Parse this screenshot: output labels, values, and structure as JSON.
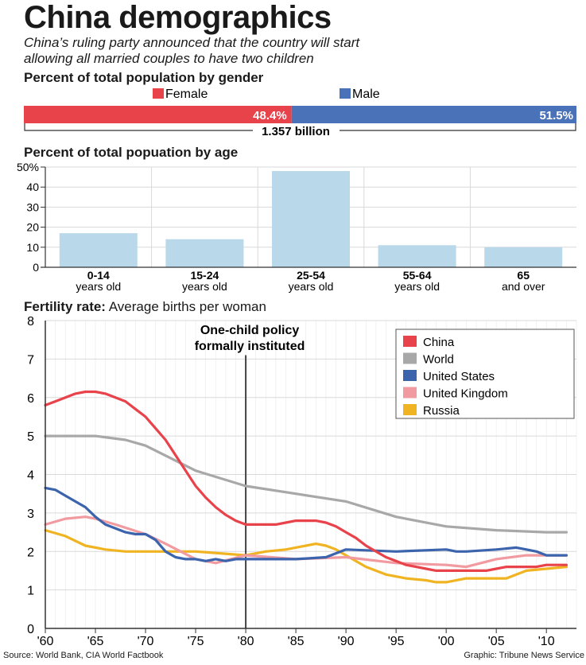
{
  "header": {
    "title": "China demographics",
    "subtitle_line1": "China’s ruling party announced that the country will start",
    "subtitle_line2": "allowing all married couples to have two children"
  },
  "colors": {
    "female": "#e8434b",
    "male": "#4a72b8",
    "age_bar": "#b9d8ea",
    "china": "#e8434b",
    "world": "#a8a8a8",
    "united_states": "#3c64ad",
    "united_kingdom": "#f19aa0",
    "russia": "#f0b422",
    "policy_line": "#444444",
    "grid": "#d9d9d9"
  },
  "gender": {
    "title": "Percent of total population by gender",
    "female_label": "Female",
    "male_label": "Male",
    "female_value": "48.4%",
    "male_value": "51.5%",
    "female_share": 48.4,
    "male_share": 51.5,
    "total": "1.357 billion"
  },
  "age": {
    "title": "Percent of total popuation by age"
  },
  "fertility": {
    "title_bold": "Fertility rate:",
    "title_rest": " Average births per woman",
    "annotation_line1": "One-child policy",
    "annotation_line2": "formally instituted",
    "policy_year": 1980
  },
  "footer": {
    "source": "Source: World Bank, CIA World Factbook",
    "credit": "Graphic: Tribune News Service"
  },
  "chart_data": [
    {
      "type": "bar",
      "title": "Percent of total popuation by age",
      "categories": [
        "0-14",
        "15-24",
        "25-54",
        "55-64",
        "65"
      ],
      "category_sublabels": [
        "years old",
        "years old",
        "years old",
        "years old",
        "and over"
      ],
      "values": [
        17,
        14,
        48,
        11,
        10
      ],
      "ylim": [
        0,
        50
      ],
      "yticks": [
        0,
        10,
        20,
        30,
        40,
        50
      ],
      "ytick_labels": [
        "0",
        "10",
        "20",
        "30",
        "40",
        "50%"
      ],
      "grid": true
    },
    {
      "type": "line",
      "title": "Fertility rate: Average births per woman",
      "xlim": [
        1960,
        2013
      ],
      "ylim": [
        0,
        8
      ],
      "xticks": [
        1960,
        1965,
        1970,
        1975,
        1980,
        1985,
        1990,
        1995,
        2000,
        2005,
        2010
      ],
      "xtick_labels": [
        "'60",
        "'65",
        "'70",
        "'75",
        "'80",
        "'85",
        "'90",
        "'95",
        "'00",
        "'05",
        "'10"
      ],
      "yticks": [
        0,
        1,
        2,
        3,
        4,
        5,
        6,
        7,
        8
      ],
      "ytick_labels": [
        "0",
        "1",
        "2",
        "3",
        "4",
        "5",
        "6",
        "7",
        "8"
      ],
      "grid": true,
      "legend_position": "top-right",
      "series": [
        {
          "name": "China",
          "color_key": "china",
          "x": [
            1960,
            1961,
            1962,
            1963,
            1964,
            1965,
            1966,
            1967,
            1968,
            1969,
            1970,
            1971,
            1972,
            1973,
            1974,
            1975,
            1976,
            1977,
            1978,
            1979,
            1980,
            1981,
            1982,
            1983,
            1984,
            1985,
            1986,
            1987,
            1988,
            1989,
            1990,
            1991,
            1992,
            1993,
            1994,
            1995,
            1996,
            1997,
            1998,
            1999,
            2000,
            2001,
            2002,
            2003,
            2004,
            2005,
            2006,
            2007,
            2008,
            2009,
            2010,
            2011,
            2012
          ],
          "y": [
            5.8,
            5.9,
            6.0,
            6.1,
            6.15,
            6.15,
            6.1,
            6.0,
            5.9,
            5.7,
            5.5,
            5.2,
            4.9,
            4.5,
            4.1,
            3.7,
            3.4,
            3.15,
            2.95,
            2.8,
            2.7,
            2.7,
            2.7,
            2.7,
            2.75,
            2.8,
            2.8,
            2.8,
            2.75,
            2.65,
            2.5,
            2.35,
            2.15,
            2.0,
            1.85,
            1.75,
            1.65,
            1.6,
            1.55,
            1.5,
            1.5,
            1.5,
            1.5,
            1.5,
            1.5,
            1.55,
            1.6,
            1.6,
            1.6,
            1.6,
            1.65,
            1.65,
            1.65
          ]
        },
        {
          "name": "World",
          "color_key": "world",
          "x": [
            1960,
            1965,
            1968,
            1970,
            1975,
            1980,
            1985,
            1990,
            1995,
            2000,
            2005,
            2010,
            2012
          ],
          "y": [
            5.0,
            5.0,
            4.9,
            4.75,
            4.1,
            3.7,
            3.5,
            3.3,
            2.9,
            2.65,
            2.55,
            2.5,
            2.5
          ]
        },
        {
          "name": "United States",
          "color_key": "united_states",
          "x": [
            1960,
            1961,
            1962,
            1963,
            1964,
            1965,
            1966,
            1967,
            1968,
            1969,
            1970,
            1971,
            1972,
            1973,
            1974,
            1975,
            1976,
            1977,
            1978,
            1979,
            1980,
            1985,
            1988,
            1990,
            1995,
            2000,
            2001,
            2002,
            2005,
            2007,
            2008,
            2009,
            2010,
            2012
          ],
          "y": [
            3.65,
            3.6,
            3.45,
            3.3,
            3.15,
            2.9,
            2.7,
            2.6,
            2.5,
            2.45,
            2.45,
            2.3,
            2.0,
            1.85,
            1.8,
            1.8,
            1.75,
            1.8,
            1.75,
            1.8,
            1.8,
            1.8,
            1.85,
            2.05,
            2.0,
            2.05,
            2.0,
            2.0,
            2.05,
            2.1,
            2.05,
            2.0,
            1.9,
            1.9
          ]
        },
        {
          "name": "United Kingdom",
          "color_key": "united_kingdom",
          "x": [
            1960,
            1962,
            1964,
            1965,
            1967,
            1970,
            1972,
            1975,
            1977,
            1980,
            1985,
            1990,
            1995,
            2000,
            2002,
            2005,
            2008,
            2010,
            2012
          ],
          "y": [
            2.7,
            2.85,
            2.9,
            2.85,
            2.7,
            2.45,
            2.2,
            1.8,
            1.7,
            1.9,
            1.8,
            1.85,
            1.7,
            1.65,
            1.6,
            1.8,
            1.9,
            1.9,
            1.9
          ]
        },
        {
          "name": "Russia",
          "color_key": "russia",
          "x": [
            1960,
            1962,
            1964,
            1966,
            1968,
            1970,
            1975,
            1980,
            1982,
            1984,
            1986,
            1987,
            1988,
            1989,
            1990,
            1992,
            1994,
            1996,
            1998,
            1999,
            2000,
            2002,
            2004,
            2006,
            2008,
            2010,
            2012
          ],
          "y": [
            2.55,
            2.4,
            2.15,
            2.05,
            2.0,
            2.0,
            2.0,
            1.9,
            2.0,
            2.05,
            2.15,
            2.2,
            2.15,
            2.05,
            1.9,
            1.6,
            1.4,
            1.3,
            1.25,
            1.2,
            1.2,
            1.3,
            1.3,
            1.3,
            1.5,
            1.55,
            1.6
          ]
        }
      ]
    }
  ]
}
